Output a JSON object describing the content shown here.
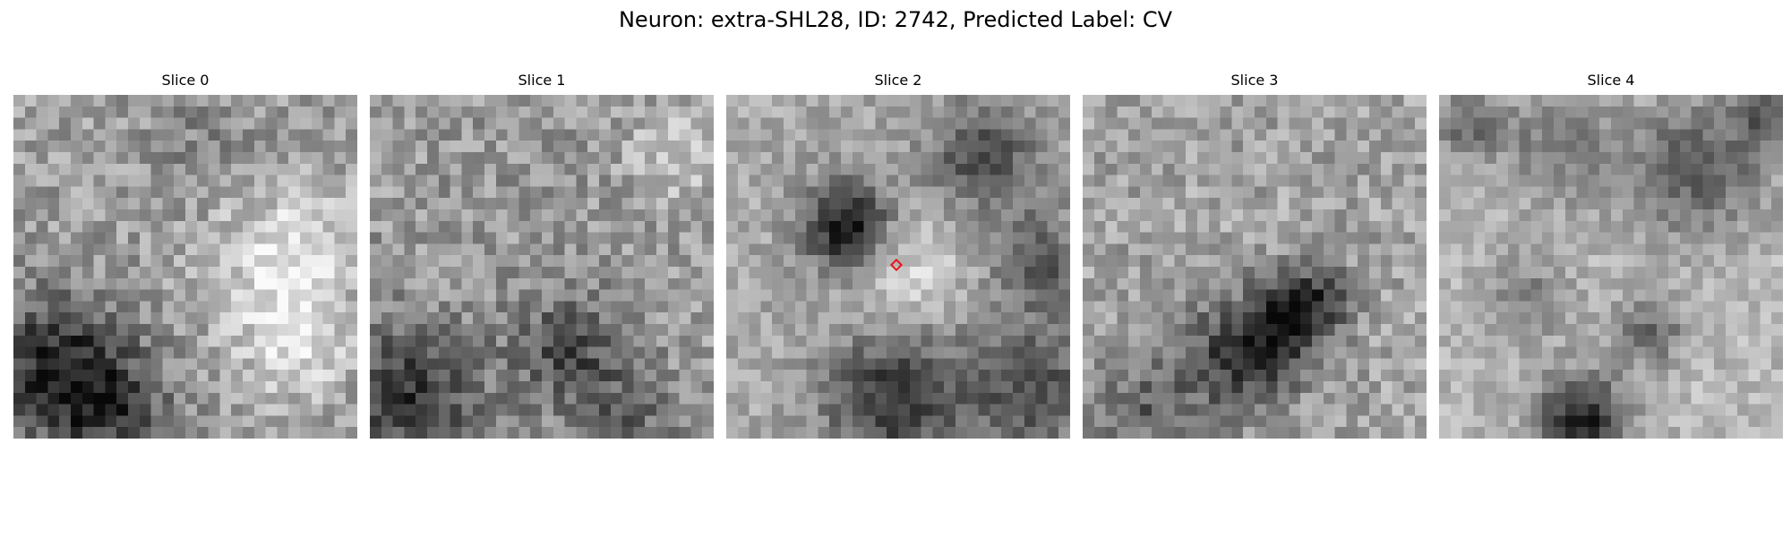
{
  "figure": {
    "title": "Neuron: extra-SHL28, ID: 2742, Predicted Label: CV",
    "colormap": "grayscale",
    "marker_color": "#e8141c",
    "panels": [
      {
        "label": "Slice 0"
      },
      {
        "label": "Slice 1"
      },
      {
        "label": "Slice 2",
        "marker": "red-diamond"
      },
      {
        "label": "Slice 3"
      },
      {
        "label": "Slice 4"
      }
    ]
  }
}
